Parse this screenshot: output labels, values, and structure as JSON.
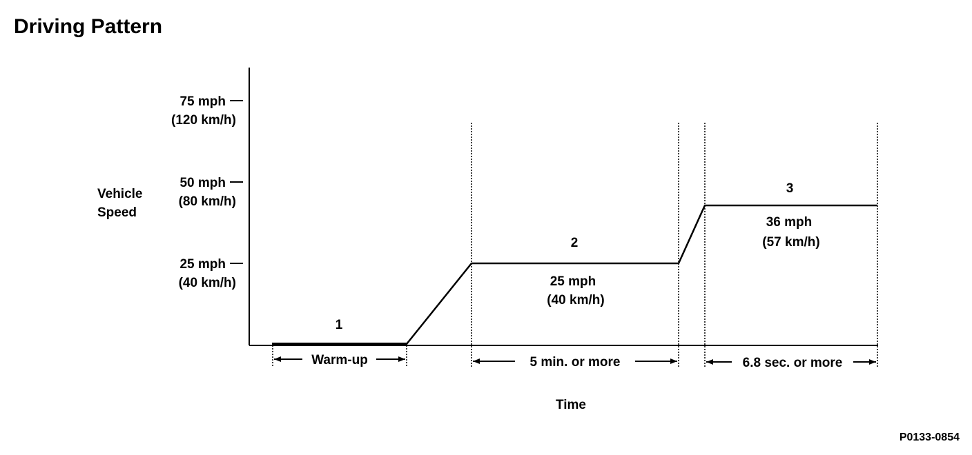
{
  "title": "Driving Pattern",
  "y_axis": {
    "label_lines": [
      "Vehicle",
      "Speed"
    ],
    "ticks": [
      {
        "mph": 75,
        "mph_label": "75 mph",
        "kmh_label": "(120 km/h)"
      },
      {
        "mph": 50,
        "mph_label": "50 mph",
        "kmh_label": "(80 km/h)"
      },
      {
        "mph": 25,
        "mph_label": "25 mph",
        "kmh_label": "(40 km/h)"
      }
    ]
  },
  "x_axis": {
    "label": "Time"
  },
  "steps": [
    {
      "number": "1",
      "duration": "Warm-up",
      "speed_mph": 0
    },
    {
      "number": "2",
      "duration": "5 min. or more",
      "speed_mph": 25,
      "speed_label": "25 mph",
      "speed_kmh_label": "(40 km/h)"
    },
    {
      "number": "3",
      "duration": "6.8 sec. or more",
      "speed_mph": 36,
      "speed_label": "36 mph",
      "speed_kmh_label": "(57 km/h)"
    }
  ],
  "figure_code": "P0133-0854"
}
